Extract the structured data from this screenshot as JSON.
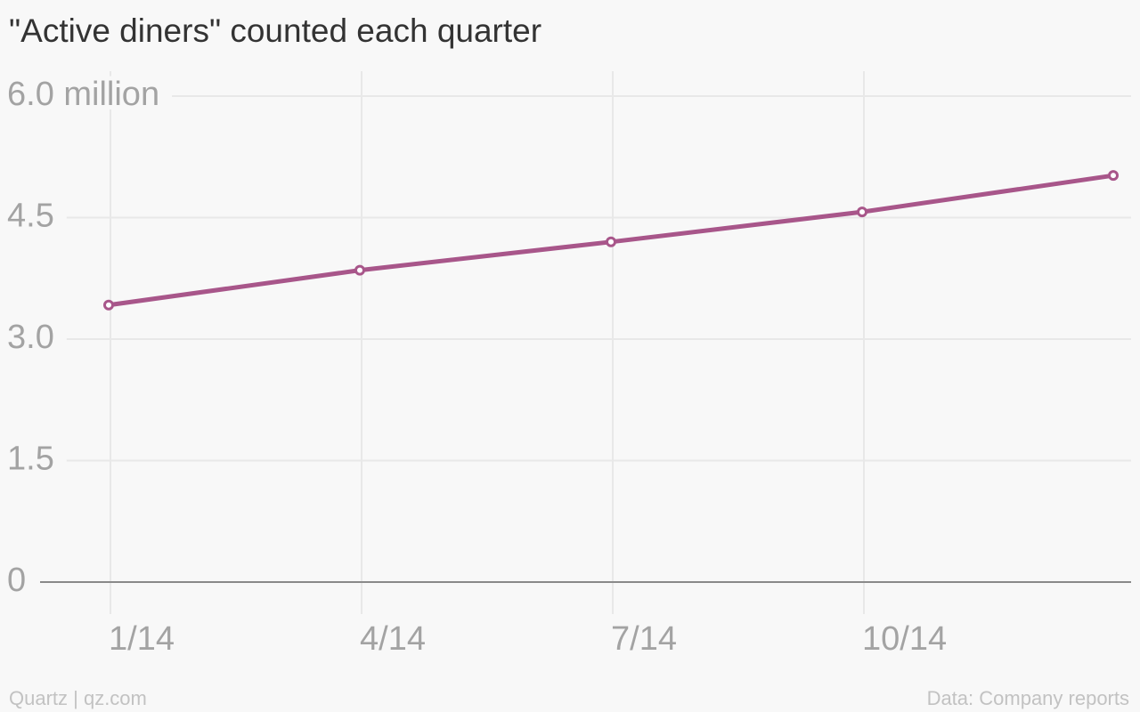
{
  "chart_data": {
    "type": "line",
    "title": "\"Active diners\" counted each quarter",
    "categories": [
      "1/14",
      "4/14",
      "7/14",
      "10/14",
      null
    ],
    "series": [
      {
        "name": "Active diners",
        "color": "#a8568a",
        "values": [
          3.42,
          3.85,
          4.2,
          4.57,
          5.02
        ]
      }
    ],
    "ylim": [
      0,
      6
    ],
    "yticks": [
      0,
      1.5,
      {
        "value": 3,
        "label": "3.0"
      },
      {
        "value": 4.5,
        "label": "4.5"
      },
      {
        "value": 6,
        "label": "6.0 million"
      }
    ],
    "grid": true,
    "source": "Data: Company reports",
    "credit": "Quartz | qz.com"
  }
}
